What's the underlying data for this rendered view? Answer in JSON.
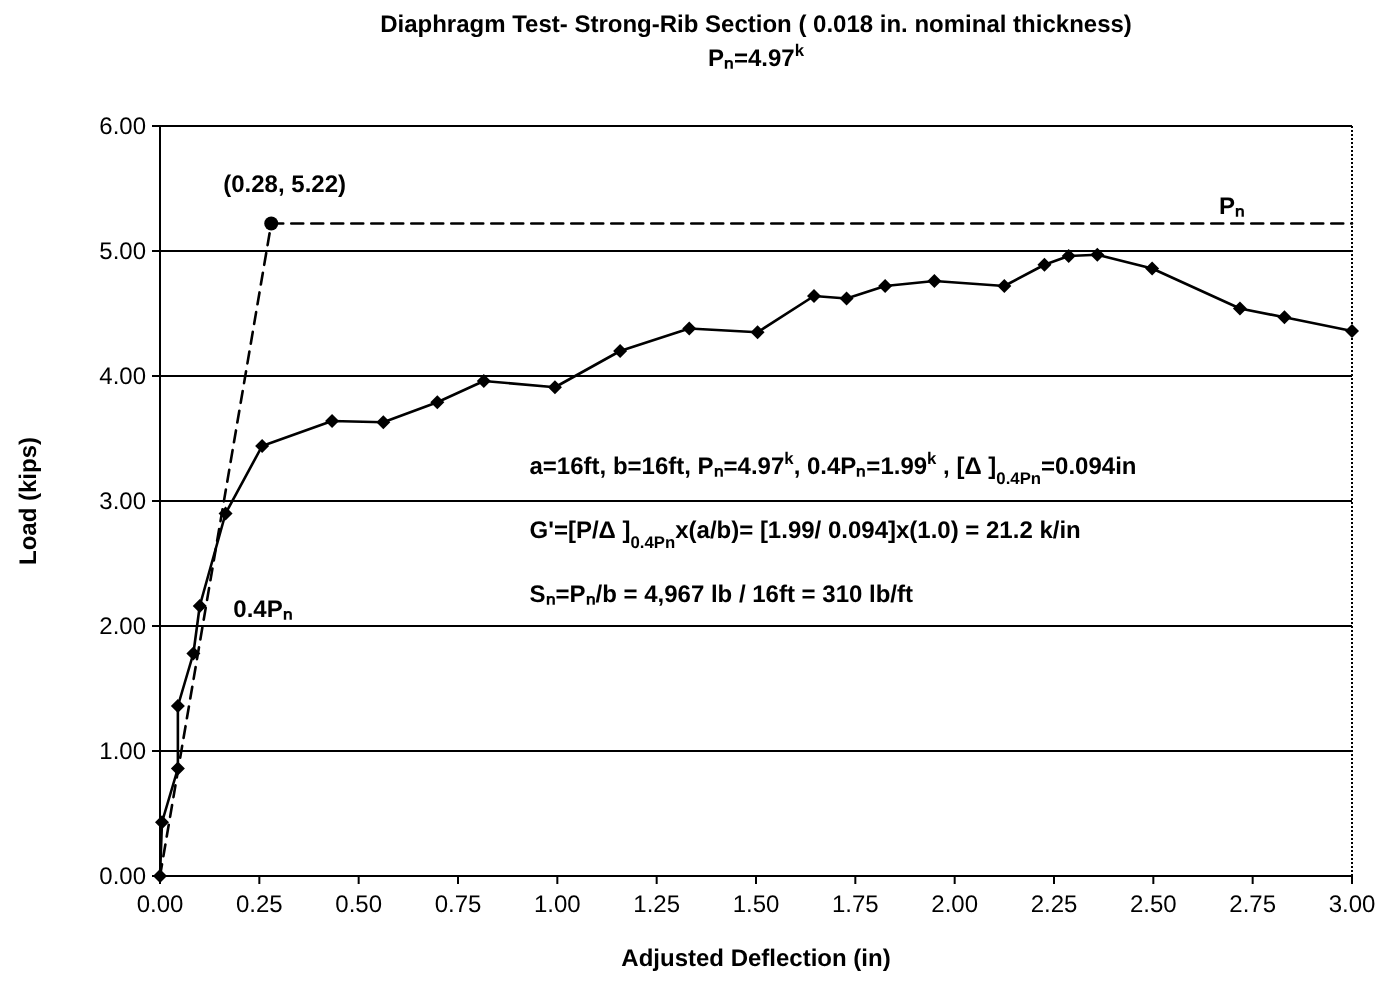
{
  "chart_data": {
    "type": "line",
    "title": "Diaphragm Test- Strong-Rib Section ( 0.018 in. nominal thickness)",
    "subtitle": "Pₙ=4.97$^{k}$",
    "xlabel": "Adjusted Deflection (in)",
    "ylabel": "Load (kips)",
    "xlim": [
      0,
      3
    ],
    "xticks": [
      {
        "value": 0,
        "label": "0.00"
      },
      {
        "value": 0.25,
        "label": "0.25"
      },
      {
        "value": 0.5,
        "label": "0.50"
      },
      {
        "value": 0.75,
        "label": "0.75"
      },
      {
        "value": 1,
        "label": "1.00"
      },
      {
        "value": 1.25,
        "label": "1.25"
      },
      {
        "value": 1.5,
        "label": "1.50"
      },
      {
        "value": 1.75,
        "label": "1.75"
      },
      {
        "value": 2,
        "label": "2.00"
      },
      {
        "value": 2.25,
        "label": "2.25"
      },
      {
        "value": 2.5,
        "label": "2.50"
      },
      {
        "value": 2.75,
        "label": "2.75"
      },
      {
        "value": 3,
        "label": "3.00"
      }
    ],
    "ylim": [
      0,
      6
    ],
    "yticks": [
      {
        "value": 0,
        "label": "0.00"
      },
      {
        "value": 1,
        "label": "1.00"
      },
      {
        "value": 2,
        "label": "2.00"
      },
      {
        "value": 3,
        "label": "3.00"
      },
      {
        "value": 4,
        "label": "4.00"
      },
      {
        "value": 5,
        "label": "5.00"
      },
      {
        "value": 6,
        "label": "6.00"
      }
    ],
    "grid": "y",
    "series": [
      {
        "color": "#000000",
        "marker": "diamond",
        "line_style": "solid",
        "x": [
          0,
          0.005,
          0.045,
          0.045,
          0.084,
          0.1,
          0.165,
          0.257,
          0.433,
          0.562,
          0.698,
          0.815,
          0.994,
          1.158,
          1.332,
          1.504,
          1.646,
          1.728,
          1.825,
          1.949,
          2.125,
          2.226,
          2.287,
          2.359,
          2.497,
          2.718,
          2.83,
          3.0
        ],
        "values": [
          0,
          0.43,
          0.86,
          1.36,
          1.78,
          2.16,
          2.9,
          3.44,
          3.64,
          3.63,
          3.79,
          3.96,
          3.91,
          4.2,
          4.38,
          4.35,
          4.64,
          4.62,
          4.72,
          4.76,
          4.72,
          4.89,
          4.96,
          4.97,
          4.86,
          4.54,
          4.47,
          4.36
        ]
      },
      {
        "color": "#000000",
        "marker": "none",
        "line_style": "dashed",
        "x": [
          0,
          0.28
        ],
        "values": [
          0,
          5.22
        ]
      },
      {
        "type": "scatter",
        "color": "#000000",
        "marker": "circle",
        "x": [
          0.28
        ],
        "values": [
          5.22
        ]
      },
      {
        "name": "Pₙ",
        "color": "#000000",
        "marker": "none",
        "line_style": "dashed",
        "x": [
          0.28,
          3.0
        ],
        "values": [
          5.22,
          5.22
        ]
      }
    ],
    "annotations": [
      {
        "text": "(0.28, 5.22)",
        "x": 0.28,
        "y": 5.22
      },
      {
        "text": "0.4Pₙ",
        "x": 0.094,
        "y": 1.99
      },
      "a=16ft,  b=16ft,  Pₙ=4.97$^{k}$,  0.4Pₙ=1.99$^{k}$ , [Δ ]$_{0.4Pn}$=0.094in",
      "G'=[P/Δ ]$_{0.4Pn}$x(a/b)= [1.99/ 0.094]x(1.0) = 21.2 k/in",
      "Sₙ=Pₙ/b = 4,967 lb / 16ft = 310 lb/ft"
    ]
  }
}
